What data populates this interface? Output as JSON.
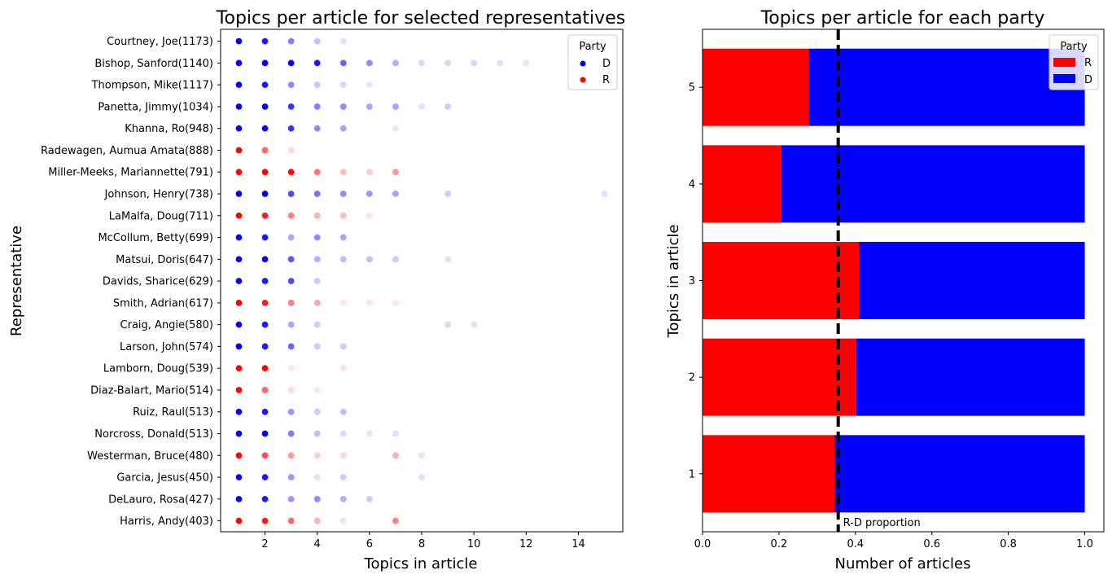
{
  "chart_data": [
    {
      "type": "scatter",
      "title": "Topics per article for selected representatives",
      "xlabel": "Topics in article",
      "ylabel": "Representative",
      "xlim": [
        0.3,
        15.7
      ],
      "xticks": [
        2,
        4,
        6,
        8,
        10,
        12,
        14
      ],
      "grid": false,
      "legend": {
        "title": "Party",
        "placement": "top-right",
        "entries": [
          {
            "label": "D",
            "color": "#0000ff"
          },
          {
            "label": "R",
            "color": "#ff0000"
          }
        ]
      },
      "representatives": [
        {
          "name": "Courtney, Joe(1173)",
          "party": "D",
          "points": [
            [
              1,
              1
            ],
            [
              2,
              0.9
            ],
            [
              3,
              0.5
            ],
            [
              4,
              0.25
            ],
            [
              5,
              0.12
            ]
          ]
        },
        {
          "name": "Bishop, Sanford(1140)",
          "party": "D",
          "points": [
            [
              1,
              1
            ],
            [
              2,
              1
            ],
            [
              3,
              1
            ],
            [
              4,
              0.9
            ],
            [
              5,
              0.6
            ],
            [
              6,
              0.45
            ],
            [
              7,
              0.3
            ],
            [
              8,
              0.15
            ],
            [
              9,
              0.15
            ],
            [
              10,
              0.15
            ],
            [
              11,
              0.12
            ],
            [
              12,
              0.1
            ]
          ]
        },
        {
          "name": "Thompson, Mike(1117)",
          "party": "D",
          "points": [
            [
              1,
              1
            ],
            [
              2,
              0.9
            ],
            [
              3,
              0.45
            ],
            [
              4,
              0.22
            ],
            [
              5,
              0.15
            ],
            [
              6,
              0.1
            ]
          ]
        },
        {
          "name": "Panetta, Jimmy(1034)",
          "party": "D",
          "points": [
            [
              1,
              1
            ],
            [
              2,
              1
            ],
            [
              3,
              0.8
            ],
            [
              4,
              0.5
            ],
            [
              5,
              0.45
            ],
            [
              6,
              0.35
            ],
            [
              7,
              0.35
            ],
            [
              8,
              0.12
            ],
            [
              9,
              0.2
            ]
          ]
        },
        {
          "name": "Khanna, Ro(948)",
          "party": "D",
          "points": [
            [
              1,
              1
            ],
            [
              2,
              1
            ],
            [
              3,
              0.8
            ],
            [
              4,
              0.45
            ],
            [
              5,
              0.35
            ],
            [
              7,
              0.1
            ]
          ]
        },
        {
          "name": "Radewagen, Aumua Amata(888)",
          "party": "R",
          "points": [
            [
              1,
              1
            ],
            [
              2,
              0.6
            ],
            [
              3,
              0.15
            ]
          ]
        },
        {
          "name": "Miller-Meeks, Mariannette(791)",
          "party": "R",
          "points": [
            [
              1,
              1
            ],
            [
              2,
              1
            ],
            [
              3,
              1
            ],
            [
              4,
              0.55
            ],
            [
              5,
              0.25
            ],
            [
              6,
              0.2
            ],
            [
              7,
              0.4
            ]
          ]
        },
        {
          "name": "Johnson, Henry(738)",
          "party": "D",
          "points": [
            [
              1,
              1
            ],
            [
              2,
              1
            ],
            [
              3,
              0.7
            ],
            [
              4,
              0.55
            ],
            [
              5,
              0.45
            ],
            [
              6,
              0.4
            ],
            [
              7,
              0.35
            ],
            [
              9,
              0.2
            ],
            [
              15,
              0.12
            ]
          ]
        },
        {
          "name": "LaMalfa, Doug(711)",
          "party": "R",
          "points": [
            [
              1,
              1
            ],
            [
              2,
              0.9
            ],
            [
              3,
              0.5
            ],
            [
              4,
              0.3
            ],
            [
              5,
              0.25
            ],
            [
              6,
              0.1
            ]
          ]
        },
        {
          "name": "McCollum, Betty(699)",
          "party": "D",
          "points": [
            [
              1,
              1
            ],
            [
              2,
              0.9
            ],
            [
              3,
              0.35
            ],
            [
              4,
              0.45
            ],
            [
              5,
              0.35
            ]
          ]
        },
        {
          "name": "Matsui, Doris(647)",
          "party": "D",
          "points": [
            [
              1,
              1
            ],
            [
              2,
              1
            ],
            [
              3,
              0.65
            ],
            [
              4,
              0.3
            ],
            [
              5,
              0.25
            ],
            [
              6,
              0.25
            ],
            [
              7,
              0.2
            ],
            [
              9,
              0.12
            ]
          ]
        },
        {
          "name": "Davids, Sharice(629)",
          "party": "D",
          "points": [
            [
              1,
              1
            ],
            [
              2,
              0.9
            ],
            [
              3,
              0.7
            ],
            [
              4,
              0.2
            ]
          ]
        },
        {
          "name": "Smith, Adrian(617)",
          "party": "R",
          "points": [
            [
              1,
              1
            ],
            [
              2,
              0.9
            ],
            [
              3,
              0.5
            ],
            [
              4,
              0.35
            ],
            [
              5,
              0.1
            ],
            [
              6,
              0.1
            ],
            [
              7,
              0.1
            ]
          ]
        },
        {
          "name": "Craig, Angie(580)",
          "party": "D",
          "points": [
            [
              1,
              1
            ],
            [
              2,
              0.9
            ],
            [
              3,
              0.35
            ],
            [
              4,
              0.2
            ],
            [
              9,
              0.15
            ],
            [
              10,
              0.12
            ]
          ]
        },
        {
          "name": "Larson, John(574)",
          "party": "D",
          "points": [
            [
              1,
              1
            ],
            [
              2,
              0.9
            ],
            [
              3,
              0.6
            ],
            [
              4,
              0.2
            ],
            [
              5,
              0.2
            ]
          ]
        },
        {
          "name": "Lamborn, Doug(539)",
          "party": "R",
          "points": [
            [
              1,
              1
            ],
            [
              2,
              1
            ],
            [
              3,
              0.1
            ],
            [
              5,
              0.12
            ]
          ]
        },
        {
          "name": "Diaz-Balart, Mario(514)",
          "party": "R",
          "points": [
            [
              1,
              1
            ],
            [
              2,
              0.6
            ],
            [
              3,
              0.15
            ],
            [
              4,
              0.1
            ]
          ]
        },
        {
          "name": "Ruiz, Raul(513)",
          "party": "D",
          "points": [
            [
              1,
              1
            ],
            [
              2,
              0.9
            ],
            [
              3,
              0.4
            ],
            [
              4,
              0.2
            ],
            [
              5,
              0.25
            ]
          ]
        },
        {
          "name": "Norcross, Donald(513)",
          "party": "D",
          "points": [
            [
              1,
              1
            ],
            [
              2,
              1
            ],
            [
              3,
              0.5
            ],
            [
              4,
              0.25
            ],
            [
              5,
              0.15
            ],
            [
              6,
              0.1
            ],
            [
              7,
              0.12
            ]
          ]
        },
        {
          "name": "Westerman, Bruce(480)",
          "party": "R",
          "points": [
            [
              1,
              1
            ],
            [
              2,
              0.7
            ],
            [
              3,
              0.4
            ],
            [
              4,
              0.2
            ],
            [
              5,
              0.15
            ],
            [
              7,
              0.3
            ],
            [
              8,
              0.12
            ]
          ]
        },
        {
          "name": "Garcia, Jesus(450)",
          "party": "D",
          "points": [
            [
              1,
              1
            ],
            [
              2,
              0.9
            ],
            [
              3,
              0.4
            ],
            [
              4,
              0.12
            ],
            [
              5,
              0.2
            ],
            [
              8,
              0.12
            ]
          ]
        },
        {
          "name": "DeLauro, Rosa(427)",
          "party": "D",
          "points": [
            [
              1,
              1
            ],
            [
              2,
              0.9
            ],
            [
              3,
              0.4
            ],
            [
              4,
              0.45
            ],
            [
              5,
              0.3
            ],
            [
              6,
              0.2
            ]
          ]
        },
        {
          "name": "Harris, Andy(403)",
          "party": "R",
          "points": [
            [
              1,
              1
            ],
            [
              2,
              0.9
            ],
            [
              3,
              0.6
            ],
            [
              4,
              0.3
            ],
            [
              5,
              0.12
            ],
            [
              7,
              0.5
            ]
          ]
        }
      ]
    },
    {
      "type": "bar",
      "orientation": "horizontal",
      "stacked": true,
      "title": "Topics per article for each party",
      "xlabel": "Number of articles",
      "ylabel": "Topics in article",
      "categories": [
        "1",
        "2",
        "3",
        "4",
        "5"
      ],
      "xlim": [
        0,
        1.05
      ],
      "xticks": [
        "0.0",
        "0.2",
        "0.4",
        "0.6",
        "0.8",
        "1.0"
      ],
      "series": [
        {
          "name": "R",
          "color": "#ff0000",
          "values": [
            0.345,
            0.402,
            0.409,
            0.206,
            0.279
          ]
        },
        {
          "name": "D",
          "color": "#0000ff",
          "values": [
            0.655,
            0.598,
            0.591,
            0.794,
            0.721
          ]
        }
      ],
      "reference_line": {
        "x": 0.355,
        "label": "R-D proportion",
        "style": "dashed",
        "color": "#000000"
      },
      "legend": {
        "title": "Party",
        "placement": "top-right"
      }
    }
  ]
}
